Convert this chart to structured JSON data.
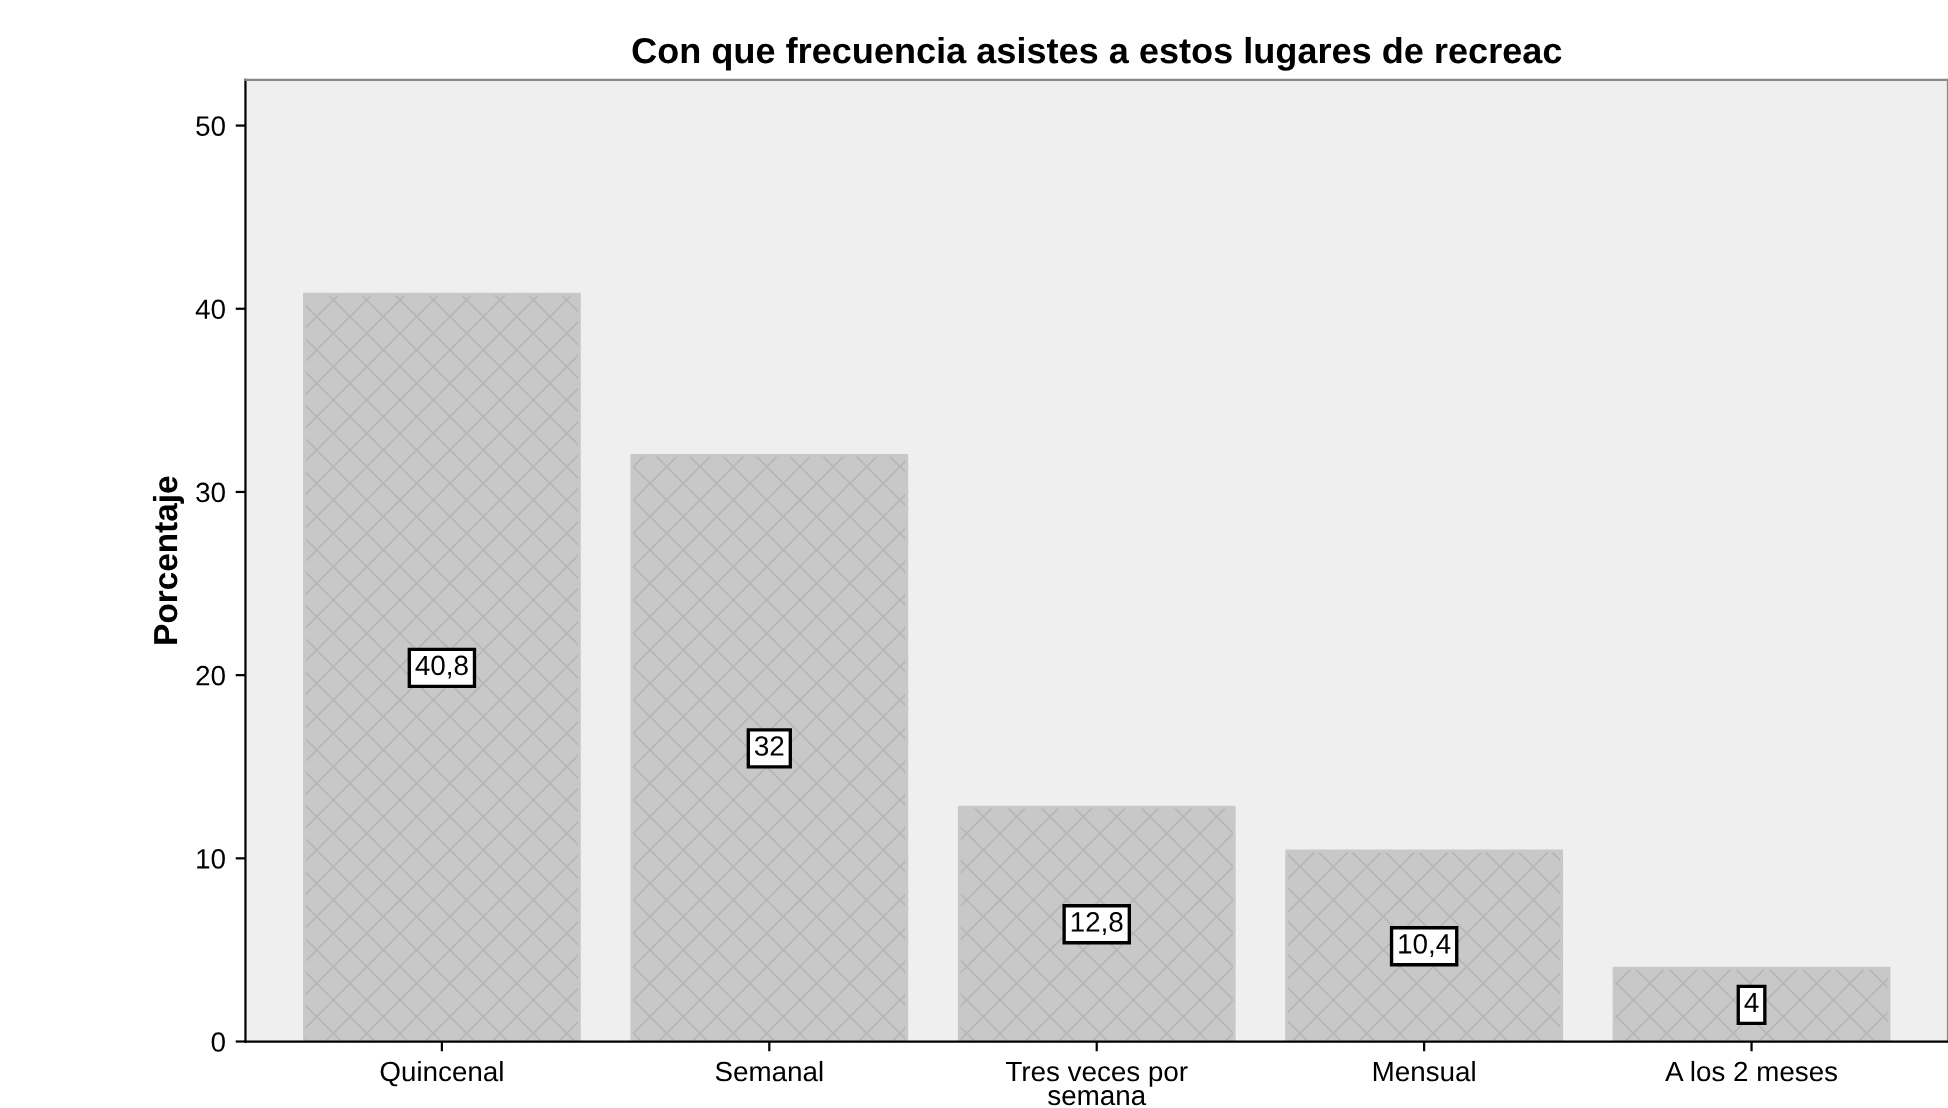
{
  "chart_data": {
    "type": "bar",
    "title": "Con que frecuencia asistes a estos lugares de recreac",
    "ylabel": "Porcentaje",
    "categories": [
      "Quincenal",
      "Semanal",
      "Tres veces por\nsemana",
      "Mensual",
      "A los 2 meses"
    ],
    "values": [
      40.8,
      32,
      12.8,
      10.4,
      4
    ],
    "value_labels": [
      "40,8",
      "32",
      "12,8",
      "10,4",
      "4"
    ],
    "color": "#c8c8c8",
    "ylim": [
      0,
      52.5
    ],
    "yticks": [
      0,
      10,
      20,
      30,
      40,
      50
    ],
    "grid": false,
    "legend": false
  }
}
